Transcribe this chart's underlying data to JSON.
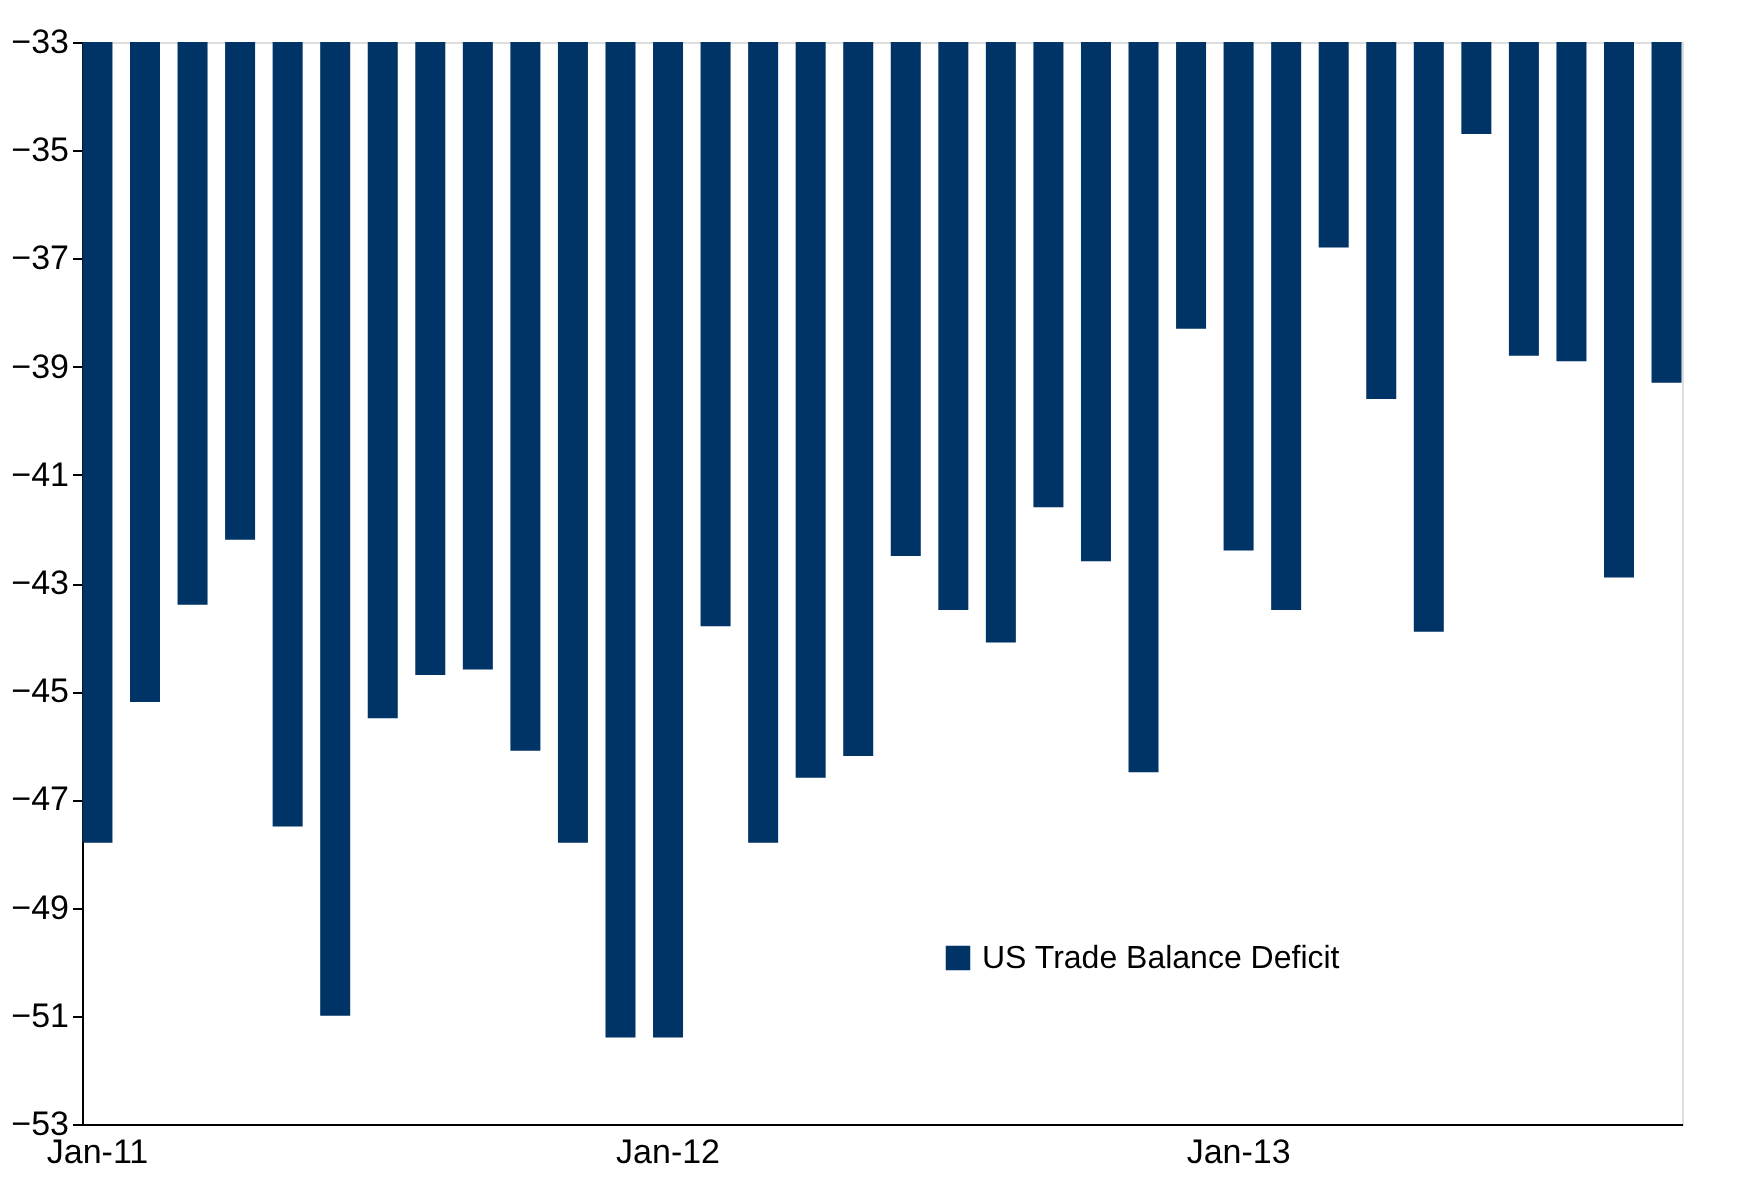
{
  "chart_data": {
    "type": "bar",
    "categories": [
      "Jan-11",
      null,
      null,
      null,
      null,
      null,
      null,
      null,
      null,
      null,
      null,
      null,
      "Jan-12",
      null,
      null,
      null,
      null,
      null,
      null,
      null,
      null,
      null,
      null,
      null,
      "Jan-13",
      null,
      null,
      null,
      null,
      null,
      null,
      null,
      null,
      null
    ],
    "series": [
      {
        "name": "US Trade Balance Deficit",
        "color": "#003366",
        "values": [
          -47.8,
          -45.2,
          -43.4,
          -42.2,
          -47.5,
          -51.0,
          -45.5,
          -44.7,
          -44.6,
          -46.1,
          -47.8,
          -51.4,
          -51.4,
          -43.8,
          -47.8,
          -46.6,
          -46.2,
          -42.5,
          -43.5,
          -44.1,
          -41.6,
          -42.6,
          -46.5,
          -38.3,
          -42.4,
          -43.5,
          -36.8,
          -39.6,
          -43.9,
          -34.7,
          -38.8,
          -38.9,
          -42.9,
          -39.3
        ]
      }
    ],
    "ylim": [
      -53,
      -33
    ],
    "yticks": [
      -53,
      -51,
      -49,
      -47,
      -45,
      -43,
      -41,
      -39,
      -37,
      -35,
      -33
    ],
    "grid": false,
    "legend": "bottom right"
  }
}
